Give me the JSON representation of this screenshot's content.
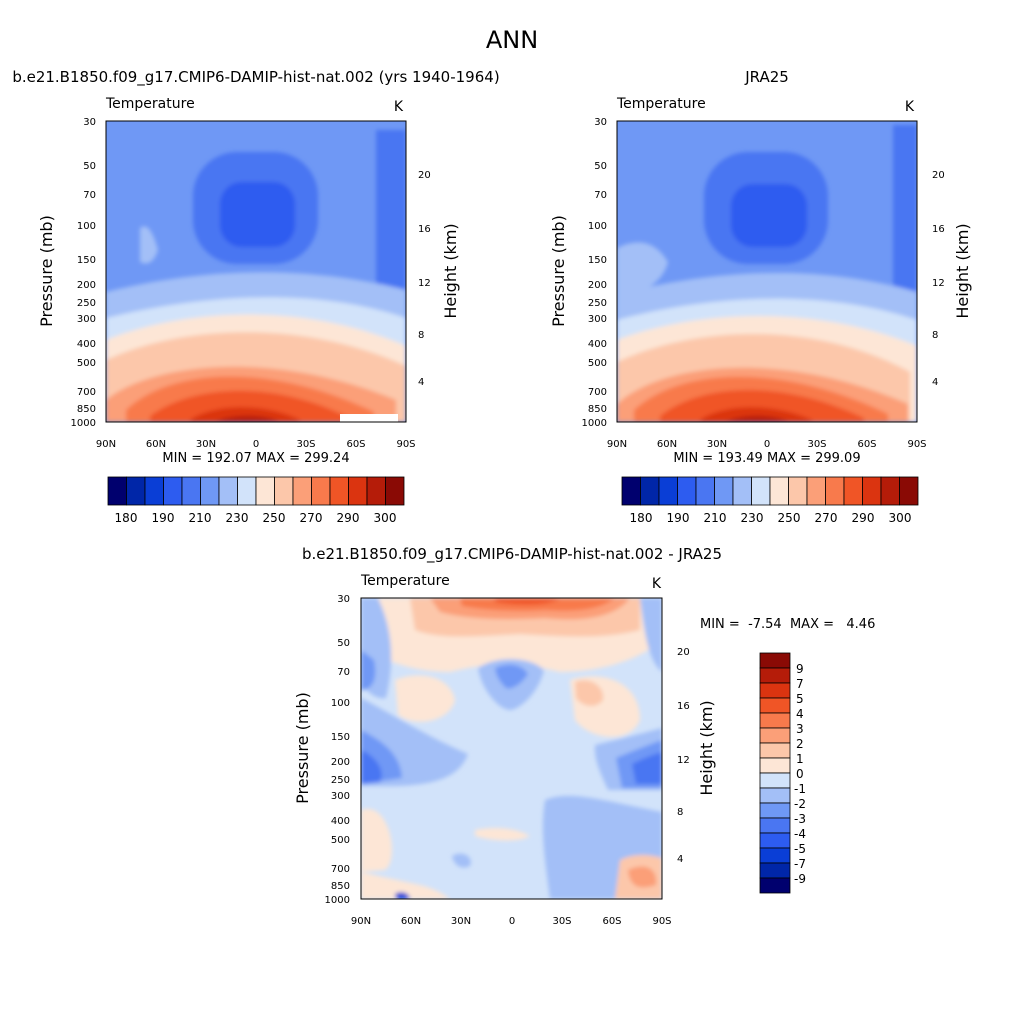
{
  "page_title": "ANN",
  "chart_data": [
    {
      "type": "heatmap",
      "title": "b.e21.B1850.f09_g17.CMIP6-DAMIP-hist-nat.002 (yrs 1940-1964)",
      "variable": "Temperature",
      "units": "K",
      "ylabel": "Pressure (mb)",
      "y2label": "Height (km)",
      "xticks": [
        "90N",
        "60N",
        "30N",
        "0",
        "30S",
        "60S",
        "90S"
      ],
      "yticks": [
        "30",
        "50",
        "70",
        "100",
        "150",
        "200",
        "250",
        "300",
        "400",
        "500",
        "700",
        "850",
        "1000"
      ],
      "y2ticks": [
        "20",
        "16",
        "12",
        "8",
        "4"
      ],
      "ylim": [
        1000,
        30
      ],
      "stats": "MIN = 192.07  MAX = 299.24",
      "colorbar": {
        "orientation": "horizontal",
        "labels": [
          "180",
          "190",
          "210",
          "230",
          "250",
          "270",
          "290",
          "300"
        ],
        "colors": [
          "#00006e",
          "#0026a8",
          "#0a3ed6",
          "#2d5cf0",
          "#4a76f2",
          "#6f98f5",
          "#a3bff7",
          "#d2e3fa",
          "#fde6d6",
          "#fcc7aa",
          "#fb9f78",
          "#f87a4c",
          "#f05526",
          "#db3410",
          "#b51c09",
          "#8a0a05"
        ]
      }
    },
    {
      "type": "heatmap",
      "title": "JRA25",
      "variable": "Temperature",
      "units": "K",
      "ylabel": "Pressure (mb)",
      "y2label": "Height (km)",
      "xticks": [
        "90N",
        "60N",
        "30N",
        "0",
        "30S",
        "60S",
        "90S"
      ],
      "yticks": [
        "30",
        "50",
        "70",
        "100",
        "150",
        "200",
        "250",
        "300",
        "400",
        "500",
        "700",
        "850",
        "1000"
      ],
      "y2ticks": [
        "20",
        "16",
        "12",
        "8",
        "4"
      ],
      "ylim": [
        1000,
        30
      ],
      "stats": "MIN = 193.49  MAX = 299.09",
      "colorbar": {
        "orientation": "horizontal",
        "labels": [
          "180",
          "190",
          "210",
          "230",
          "250",
          "270",
          "290",
          "300"
        ],
        "colors": [
          "#00006e",
          "#0026a8",
          "#0a3ed6",
          "#2d5cf0",
          "#4a76f2",
          "#6f98f5",
          "#a3bff7",
          "#d2e3fa",
          "#fde6d6",
          "#fcc7aa",
          "#fb9f78",
          "#f87a4c",
          "#f05526",
          "#db3410",
          "#b51c09",
          "#8a0a05"
        ]
      }
    },
    {
      "type": "heatmap",
      "title": "b.e21.B1850.f09_g17.CMIP6-DAMIP-hist-nat.002 - JRA25",
      "variable": "Temperature",
      "units": "K",
      "ylabel": "Pressure (mb)",
      "y2label": "Height (km)",
      "xticks": [
        "90N",
        "60N",
        "30N",
        "0",
        "30S",
        "60S",
        "90S"
      ],
      "yticks": [
        "30",
        "50",
        "70",
        "100",
        "150",
        "200",
        "250",
        "300",
        "400",
        "500",
        "700",
        "850",
        "1000"
      ],
      "y2ticks": [
        "20",
        "16",
        "12",
        "8",
        "4"
      ],
      "ylim": [
        1000,
        30
      ],
      "stats": "MIN =  -7.54  MAX =   4.46",
      "colorbar": {
        "orientation": "vertical",
        "labels": [
          "9",
          "7",
          "5",
          "4",
          "3",
          "2",
          "1",
          "0",
          "-1",
          "-2",
          "-3",
          "-4",
          "-5",
          "-7",
          "-9"
        ],
        "colors": [
          "#8a0a05",
          "#b51c09",
          "#db3410",
          "#f05526",
          "#f87a4c",
          "#fb9f78",
          "#fcc7aa",
          "#fde6d6",
          "#d2e3fa",
          "#a3bff7",
          "#6f98f5",
          "#4a76f2",
          "#2d5cf0",
          "#0a3ed6",
          "#0026a8",
          "#00006e"
        ]
      }
    }
  ]
}
